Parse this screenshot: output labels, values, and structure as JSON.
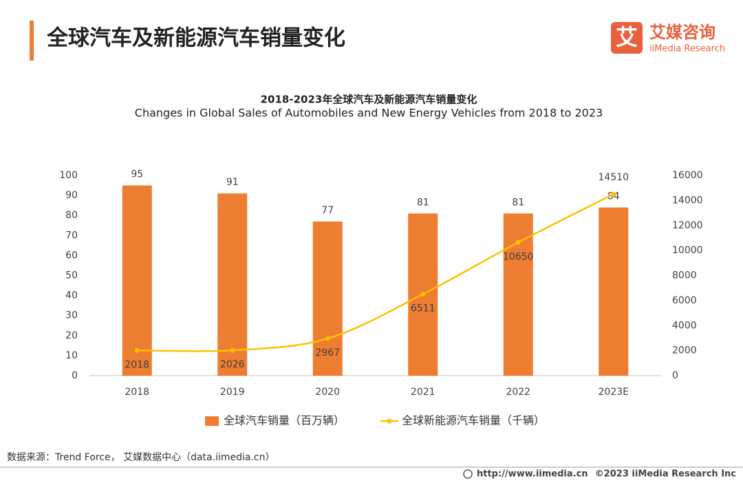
{
  "header": {
    "title": "全球汽车及新能源汽车销量变化",
    "logo_mark": "艾",
    "logo_name": "艾媒咨询",
    "logo_sub": "iiMedia Research"
  },
  "chart_data": {
    "type": "bar",
    "title": "2018-2023年全球汽车及新能源汽车销量变化",
    "subtitle": "Changes in Global Sales of Automobiles and New Energy Vehicles from 2018 to 2023",
    "categories": [
      "2018",
      "2019",
      "2020",
      "2021",
      "2022",
      "2023E"
    ],
    "series": [
      {
        "name": "全球汽车销量（百万辆）",
        "type": "bar",
        "color": "#ED7D31",
        "values": [
          95,
          91,
          77,
          81,
          81,
          84
        ]
      },
      {
        "name": "全球新能源汽车销量（千辆）",
        "type": "line",
        "axis": "y2",
        "color": "#FFC000",
        "values": [
          2018,
          2026,
          2967,
          6511,
          10650,
          14510
        ]
      }
    ],
    "ylim": [
      0,
      100
    ],
    "yticks": [
      0,
      10,
      20,
      30,
      40,
      50,
      60,
      70,
      80,
      90,
      100
    ],
    "y2lim": [
      0,
      16000
    ],
    "y2ticks": [
      0,
      2000,
      4000,
      6000,
      8000,
      10000,
      12000,
      14000,
      16000
    ],
    "legend": "bottom"
  },
  "footer": {
    "source": "数据来源：Trend Force， 艾媒数据中心（data.iimedia.cn）",
    "url": "http://www.iimedia.cn",
    "copyright": "©2023  iiMedia Research  Inc"
  }
}
